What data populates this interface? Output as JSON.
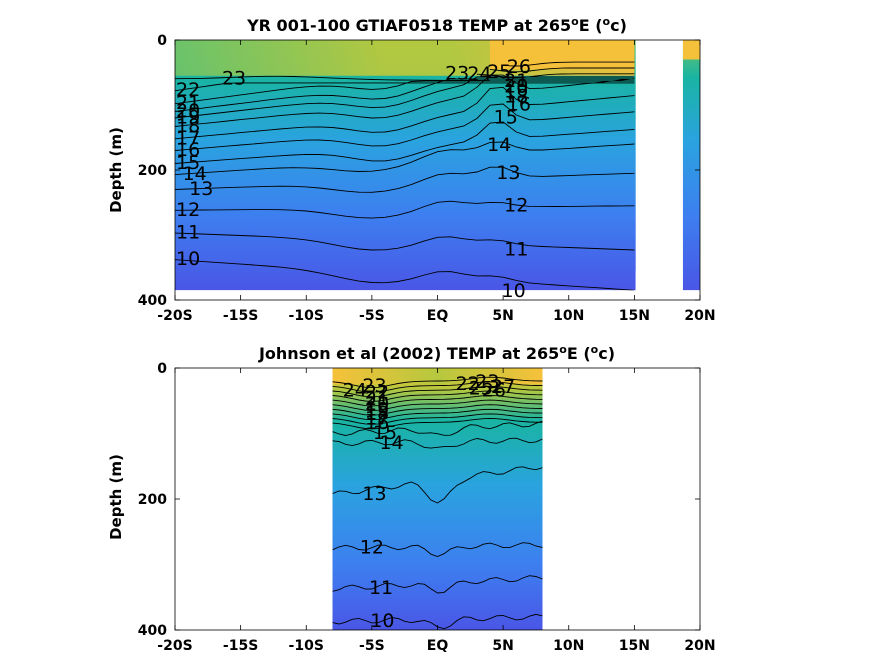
{
  "chart_data": [
    {
      "type": "contour",
      "title_parts": [
        "YR 001-100 GTIAF0518 TEMP at 265",
        "o",
        "E (",
        "o",
        "c)"
      ],
      "ylabel": "Depth (m)",
      "xlim": [
        -20,
        20
      ],
      "ylim": [
        400,
        0
      ],
      "x_ticks": [
        -20,
        -15,
        -10,
        -5,
        0,
        5,
        10,
        15,
        20
      ],
      "x_tick_labels": [
        "-20S",
        "-15S",
        "-10S",
        "-5S",
        "EQ",
        "5N",
        "10N",
        "15N",
        "20N"
      ],
      "y_ticks": [
        0,
        200,
        400
      ],
      "y_tick_labels": [
        "0",
        "200",
        "400"
      ],
      "data_extent_x": [
        -20,
        20
      ],
      "data_extent_y": [
        0,
        385
      ],
      "missing_x_ranges": [
        [
          15.1,
          18.7
        ]
      ],
      "contour_levels": [
        10,
        11,
        12,
        13,
        14,
        15,
        16,
        17,
        18,
        19,
        20,
        21,
        22,
        23,
        24,
        25,
        26
      ],
      "contour_labels": [
        {
          "text": "23",
          "x": -15.5,
          "y": 60
        },
        {
          "text": "22",
          "x": -19,
          "y": 78
        },
        {
          "text": "21",
          "x": -19,
          "y": 98
        },
        {
          "text": "20",
          "x": -19,
          "y": 110
        },
        {
          "text": "19",
          "x": -19,
          "y": 120
        },
        {
          "text": "18",
          "x": -19,
          "y": 133
        },
        {
          "text": "17",
          "x": -19,
          "y": 152
        },
        {
          "text": "16",
          "x": -19,
          "y": 170
        },
        {
          "text": "15",
          "x": -19,
          "y": 190
        },
        {
          "text": "14",
          "x": -18.5,
          "y": 207
        },
        {
          "text": "13",
          "x": -18,
          "y": 230
        },
        {
          "text": "12",
          "x": -19,
          "y": 262
        },
        {
          "text": "11",
          "x": -19,
          "y": 297
        },
        {
          "text": "10",
          "x": -19,
          "y": 338
        },
        {
          "text": "26",
          "x": 6.2,
          "y": 42
        },
        {
          "text": "25",
          "x": 4.7,
          "y": 50
        },
        {
          "text": "24",
          "x": 3.2,
          "y": 53
        },
        {
          "text": "23",
          "x": 1.5,
          "y": 52
        },
        {
          "text": "21",
          "x": 6,
          "y": 64
        },
        {
          "text": "20",
          "x": 6,
          "y": 72
        },
        {
          "text": "19",
          "x": 6,
          "y": 80
        },
        {
          "text": "18",
          "x": 6,
          "y": 88
        },
        {
          "text": "16",
          "x": 6.2,
          "y": 100
        },
        {
          "text": "15",
          "x": 5.2,
          "y": 120
        },
        {
          "text": "14",
          "x": 4.7,
          "y": 162
        },
        {
          "text": "13",
          "x": 5.4,
          "y": 205
        },
        {
          "text": "12",
          "x": 6,
          "y": 255
        },
        {
          "text": "11",
          "x": 6,
          "y": 323
        },
        {
          "text": "10",
          "x": 5.8,
          "y": 387
        }
      ]
    },
    {
      "type": "contour",
      "title_parts": [
        "Johnson et al (2002) TEMP at 265",
        "o",
        "E (",
        "o",
        "c)"
      ],
      "ylabel": "Depth (m)",
      "xlim": [
        -20,
        20
      ],
      "ylim": [
        400,
        0
      ],
      "x_ticks": [
        -20,
        -15,
        -10,
        -5,
        0,
        5,
        10,
        15,
        20
      ],
      "x_tick_labels": [
        "-20S",
        "-15S",
        "-10S",
        "-5S",
        "EQ",
        "5N",
        "10N",
        "15N",
        "20N"
      ],
      "y_ticks": [
        0,
        200,
        400
      ],
      "y_tick_labels": [
        "0",
        "200",
        "400"
      ],
      "data_extent_x": [
        -8,
        8
      ],
      "data_extent_y": [
        0,
        400
      ],
      "contour_levels": [
        10,
        11,
        12,
        13,
        14,
        15,
        16,
        17,
        18,
        19,
        20,
        21,
        22,
        23,
        24,
        25,
        26,
        27
      ],
      "contour_labels": [
        {
          "text": "24",
          "x": -6.3,
          "y": 35
        },
        {
          "text": "23",
          "x": -4.8,
          "y": 28
        },
        {
          "text": "22",
          "x": -4.6,
          "y": 38
        },
        {
          "text": "21",
          "x": -4.6,
          "y": 48
        },
        {
          "text": "20",
          "x": -4.6,
          "y": 56
        },
        {
          "text": "19",
          "x": -4.6,
          "y": 64
        },
        {
          "text": "18",
          "x": -4.6,
          "y": 70
        },
        {
          "text": "17",
          "x": -4.6,
          "y": 78
        },
        {
          "text": "16",
          "x": -4.6,
          "y": 85
        },
        {
          "text": "15",
          "x": -4,
          "y": 100
        },
        {
          "text": "14",
          "x": -3.5,
          "y": 115
        },
        {
          "text": "22",
          "x": 2.3,
          "y": 25
        },
        {
          "text": "23",
          "x": 3.8,
          "y": 22
        },
        {
          "text": "25",
          "x": 3.3,
          "y": 32
        },
        {
          "text": "26",
          "x": 4.3,
          "y": 35
        },
        {
          "text": "27",
          "x": 5,
          "y": 30
        },
        {
          "text": "13",
          "x": -4.8,
          "y": 193
        },
        {
          "text": "12",
          "x": -5,
          "y": 275
        },
        {
          "text": "11",
          "x": -4.3,
          "y": 337
        },
        {
          "text": "10",
          "x": -4.2,
          "y": 387
        }
      ]
    }
  ]
}
